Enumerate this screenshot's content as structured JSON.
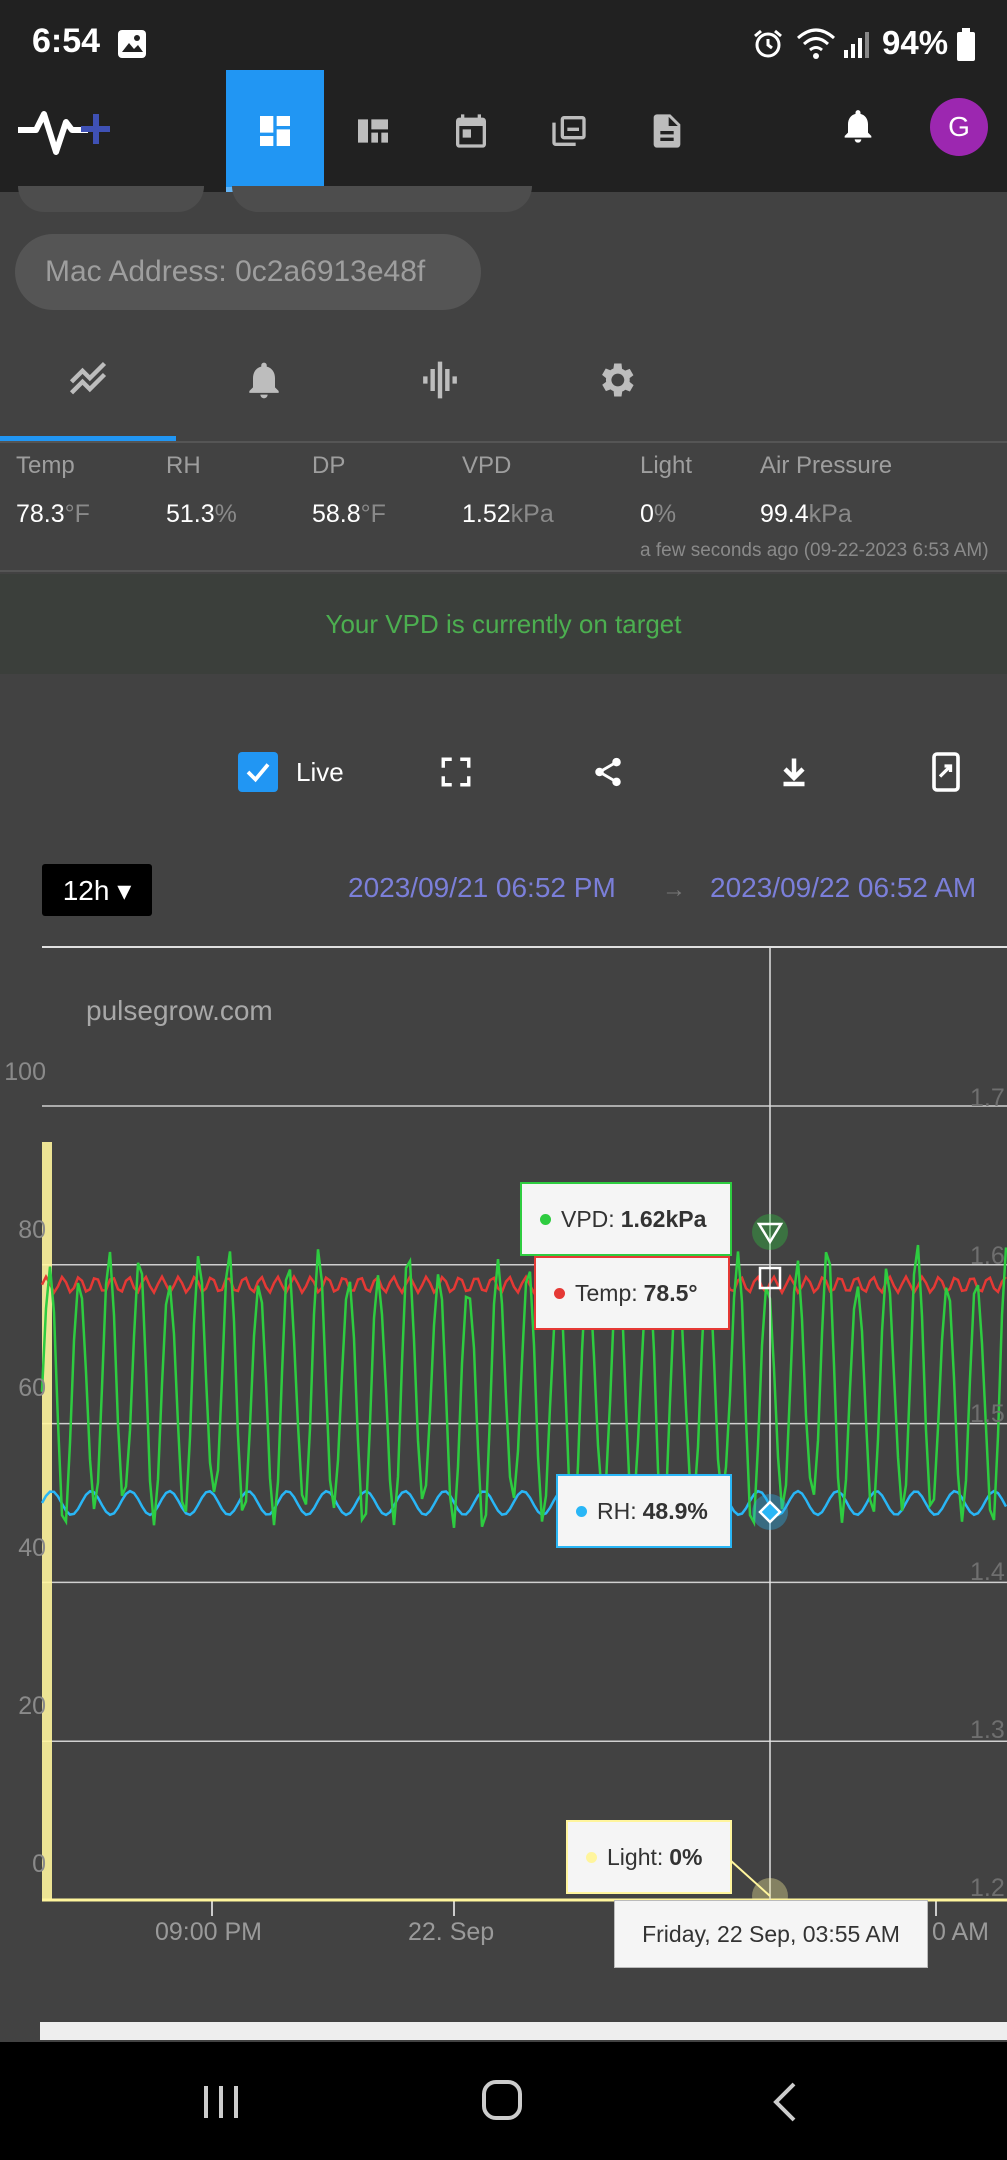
{
  "status": {
    "time": "6:54",
    "battery": "94%"
  },
  "nav": {
    "items": [
      "dashboard-icon",
      "layout-icon",
      "calendar-icon",
      "gallery-icon",
      "document-icon"
    ],
    "avatar_letter": "G"
  },
  "device": {
    "mac": "Mac Address: 0c2a6913e48f"
  },
  "tabs": [
    "chart-icon",
    "alarm-icon",
    "sensor-icon",
    "gear-icon"
  ],
  "metrics": [
    {
      "label": "Temp",
      "value": "78.3",
      "unit": "°F"
    },
    {
      "label": "RH",
      "value": "51.3",
      "unit": "%"
    },
    {
      "label": "DP",
      "value": "58.8",
      "unit": "°F"
    },
    {
      "label": "VPD",
      "value": "1.52",
      "unit": "kPa"
    },
    {
      "label": "Light",
      "value": "0",
      "unit": "%"
    },
    {
      "label": "Air Pressure",
      "value": "99.4",
      "unit": "kPa"
    }
  ],
  "updated": "a few seconds ago (09-22-2023 6:53 AM)",
  "banner": "Your VPD is currently on target",
  "toolbar": {
    "live_label": "Live",
    "live_checked": true
  },
  "range": {
    "period": "12h ▾",
    "start": "2023/09/21 06:52 PM",
    "arrow": "→",
    "end": "2023/09/22 06:52 AM"
  },
  "colors": {
    "accent": "#2196f3",
    "vpd": "#2ecc40",
    "temp": "#e53935",
    "rh": "#29b6f6",
    "light": "#fff59d",
    "banner_text": "#4caf50",
    "date_text": "#7b7fd9",
    "avatar": "#9c27b0"
  },
  "chart_data": {
    "type": "line",
    "watermark": "pulsegrow.com",
    "left_axis": {
      "ticks": [
        "100",
        "80",
        "60",
        "40",
        "20",
        "0"
      ],
      "range": [
        0,
        100
      ]
    },
    "right_axis": {
      "ticks": [
        "1.7",
        "1.6",
        "1.5",
        "1.4",
        "1.3",
        "1.2"
      ],
      "range": [
        1.2,
        1.7
      ]
    },
    "x_ticks": [
      "09:00 PM",
      "22. Sep",
      "0 AM"
    ],
    "series": [
      {
        "name": "VPD",
        "color": "#2ecc40",
        "axis": "right",
        "mean": 1.52,
        "amplitude": 0.1
      },
      {
        "name": "Temp",
        "color": "#e53935",
        "axis": "left",
        "mean": 77.5,
        "amplitude": 1.0
      },
      {
        "name": "RH",
        "color": "#29b6f6",
        "axis": "left",
        "mean": 50,
        "amplitude": 1.5
      },
      {
        "name": "Light",
        "color": "#fff59d",
        "axis": "left",
        "mean": 0,
        "amplitude": 0
      }
    ],
    "tooltips": {
      "vpd": {
        "label": "VPD:",
        "value": "1.62kPa"
      },
      "temp": {
        "label": "Temp:",
        "value": "78.5°"
      },
      "rh": {
        "label": "RH:",
        "value": "48.9%"
      },
      "light": {
        "label": "Light:",
        "value": "0%"
      },
      "time": "Friday, 22 Sep, 03:55 AM"
    }
  }
}
